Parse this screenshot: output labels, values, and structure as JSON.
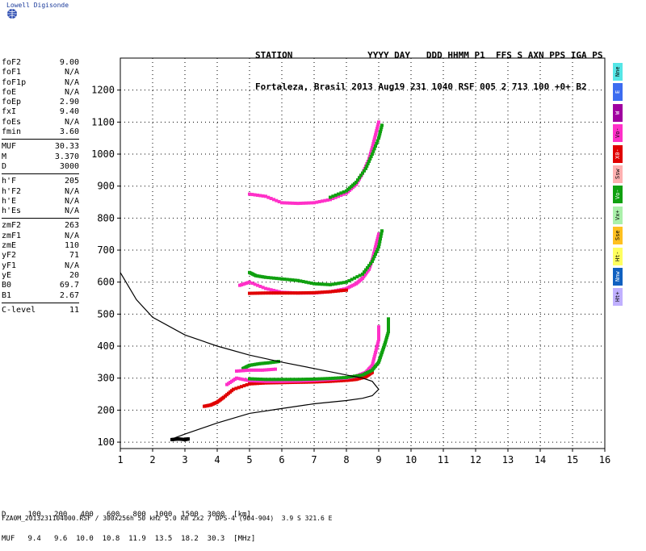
{
  "app": {
    "title": "Lowell Digisonde"
  },
  "header": {
    "line1": "STATION              YYYY DAY   DDD HHMM P1  FFS S AXN PPS IGA PS",
    "line2": "Fortaleza, Brasil 2013 Aug19 231 1040 RSF 005 2 713 100 +0+ B2"
  },
  "params": {
    "group1": [
      {
        "label": "foF2",
        "value": "9.00"
      },
      {
        "label": "foF1",
        "value": "N/A"
      },
      {
        "label": "foF1p",
        "value": "N/A"
      },
      {
        "label": "foE",
        "value": "N/A"
      },
      {
        "label": "foEp",
        "value": "2.90"
      },
      {
        "label": "fxI",
        "value": "9.40"
      },
      {
        "label": "foEs",
        "value": "N/A"
      },
      {
        "label": "fmin",
        "value": "3.60"
      }
    ],
    "group2": [
      {
        "label": "MUF",
        "value": "30.33"
      },
      {
        "label": "M",
        "value": "3.370"
      },
      {
        "label": "D",
        "value": "3000"
      }
    ],
    "group3": [
      {
        "label": "h'F",
        "value": "205"
      },
      {
        "label": "h'F2",
        "value": "N/A"
      },
      {
        "label": "h'E",
        "value": "N/A"
      },
      {
        "label": "h'Es",
        "value": "N/A"
      }
    ],
    "group4": [
      {
        "label": "zmF2",
        "value": "263"
      },
      {
        "label": "zmF1",
        "value": "N/A"
      },
      {
        "label": "zmE",
        "value": "110"
      },
      {
        "label": "yF2",
        "value": "71"
      },
      {
        "label": "yF1",
        "value": "N/A"
      },
      {
        "label": "yE",
        "value": "20"
      },
      {
        "label": "B0",
        "value": "69.7"
      },
      {
        "label": "B1",
        "value": "2.67"
      }
    ],
    "group5": [
      {
        "label": "C-level",
        "value": "11"
      }
    ]
  },
  "legend": [
    {
      "label": "Nne",
      "color": "#55e6e6"
    },
    {
      "label": "E",
      "color": "#3c6cf0"
    },
    {
      "label": "W",
      "color": "#a000a0"
    },
    {
      "label": "Vo-",
      "color": "#ff30c8"
    },
    {
      "label": "X0-",
      "color": "#e00000"
    },
    {
      "label": "Ssw",
      "color": "#ffb0b0"
    },
    {
      "label": "Vo-",
      "color": "#10a010"
    },
    {
      "label": "Vx+",
      "color": "#aaf0aa"
    },
    {
      "label": "Sse",
      "color": "#ffc020"
    },
    {
      "label": "Ht-",
      "color": "#ffff60"
    },
    {
      "label": "Nnw",
      "color": "#1060c0"
    },
    {
      "label": "Ht+",
      "color": "#c0b0ff"
    }
  ],
  "bottom": {
    "d_line": "D     100   200   400   600   800  1000  1500  3000  [km]",
    "muf_line": "MUF   9.4   9.6  10.0  10.8  11.9  13.5  18.2  30.3  [MHz]"
  },
  "footer": "FZA0M_2013231104000.RSF / 300x256h 50 kHz 5.0 km 2x2 / DPS-4 (904-904)  3.9 S 321.6 E",
  "chart_data": {
    "type": "scatter",
    "xlim": [
      1,
      16
    ],
    "ylim": [
      80,
      1300
    ],
    "xticks": [
      "1",
      "2",
      "3",
      "4",
      "5",
      "6",
      "7",
      "8",
      "9",
      "10",
      "11",
      "12",
      "13",
      "14",
      "15",
      "16"
    ],
    "yticks": [
      "100",
      "200",
      "300",
      "400",
      "500",
      "600",
      "700",
      "800",
      "900",
      "1000",
      "1100",
      "1200"
    ],
    "grid": true,
    "profile": {
      "color": "#000000",
      "x": [
        1.0,
        1.5,
        2.0,
        3.0,
        4.0,
        5.0,
        6.0,
        7.0,
        7.5,
        8.0,
        8.5,
        8.8,
        9.0,
        8.8,
        8.5,
        8.0,
        7.0,
        6.0,
        5.0,
        4.0,
        3.0,
        2.6
      ],
      "y": [
        630,
        545,
        490,
        435,
        400,
        372,
        350,
        330,
        320,
        310,
        300,
        290,
        265,
        245,
        237,
        230,
        220,
        205,
        190,
        160,
        125,
        110
      ]
    },
    "traces": [
      {
        "name": "F 1st hop (X0-)",
        "color": "#e00000",
        "x": [
          3.6,
          3.8,
          4.0,
          4.2,
          4.5,
          5.0,
          5.5,
          6.0,
          6.5,
          7.0,
          7.5,
          8.0,
          8.3,
          8.6,
          8.8
        ],
        "y": [
          212,
          216,
          225,
          240,
          265,
          282,
          285,
          286,
          287,
          288,
          290,
          293,
          296,
          304,
          318
        ]
      },
      {
        "name": "F 1st hop (Vo-)",
        "color": "#ff30c8",
        "x": [
          4.3,
          4.6,
          5.0,
          5.5,
          6.0,
          6.5,
          7.0,
          7.5,
          8.0,
          8.3,
          8.6,
          8.8,
          8.9,
          9.0,
          9.0
        ],
        "y": [
          280,
          300,
          292,
          290,
          290,
          291,
          293,
          296,
          300,
          306,
          318,
          340,
          380,
          420,
          460
        ]
      },
      {
        "name": "F 1st hop (Vo- green)",
        "color": "#10a010",
        "x": [
          5.0,
          5.5,
          6.0,
          6.5,
          7.0,
          7.5,
          8.0,
          8.5,
          8.8,
          9.0,
          9.1,
          9.2,
          9.3,
          9.3
        ],
        "y": [
          298,
          296,
          296,
          296,
          297,
          299,
          302,
          310,
          325,
          350,
          380,
          410,
          445,
          485
        ]
      },
      {
        "name": "F 2nd hop (Vo-)",
        "color": "#ff30c8",
        "x": [
          4.7,
          5.0,
          5.5,
          6.0,
          6.5,
          7.0,
          7.5,
          8.0,
          8.3,
          8.5,
          8.7,
          8.8,
          8.9,
          9.0
        ],
        "y": [
          590,
          600,
          580,
          568,
          566,
          566,
          570,
          580,
          595,
          612,
          640,
          670,
          710,
          750
        ]
      },
      {
        "name": "F 2nd hop (X0-)",
        "color": "#e00000",
        "x": [
          5.0,
          5.5,
          6.0,
          6.5,
          7.0,
          7.5,
          8.0
        ],
        "y": [
          565,
          566,
          566,
          566,
          567,
          570,
          575
        ]
      },
      {
        "name": "F 2nd hop (green)",
        "color": "#10a010",
        "x": [
          5.0,
          5.2,
          5.5,
          6.0,
          6.5,
          7.0,
          7.5,
          8.0,
          8.5,
          8.8,
          9.0,
          9.1
        ],
        "y": [
          630,
          620,
          615,
          610,
          605,
          595,
          592,
          600,
          625,
          665,
          710,
          760
        ]
      },
      {
        "name": "F 3rd hop (Vo-)",
        "color": "#ff30c8",
        "x": [
          5.0,
          5.5,
          6.0,
          6.5,
          7.0,
          7.5,
          8.0,
          8.3,
          8.5,
          8.7,
          8.8,
          8.9,
          9.0
        ],
        "y": [
          875,
          868,
          848,
          846,
          848,
          858,
          878,
          905,
          940,
          985,
          1020,
          1060,
          1100
        ]
      },
      {
        "name": "F 3rd hop (green)",
        "color": "#10a010",
        "x": [
          7.5,
          8.0,
          8.3,
          8.6,
          8.8,
          9.0,
          9.1
        ],
        "y": [
          865,
          885,
          912,
          955,
          1000,
          1050,
          1090
        ]
      },
      {
        "name": "E trace",
        "color": "#000000",
        "x": [
          2.6,
          2.8,
          3.0,
          3.1
        ],
        "y": [
          108,
          110,
          108,
          110
        ]
      },
      {
        "name": "Es upper (green)",
        "color": "#10a010",
        "x": [
          4.8,
          5.0,
          5.3,
          5.6,
          5.9
        ],
        "y": [
          330,
          340,
          345,
          348,
          352
        ]
      },
      {
        "name": "Es upper (Vo-)",
        "color": "#ff30c8",
        "x": [
          4.6,
          5.0,
          5.4,
          5.8
        ],
        "y": [
          322,
          325,
          325,
          328
        ]
      }
    ]
  }
}
